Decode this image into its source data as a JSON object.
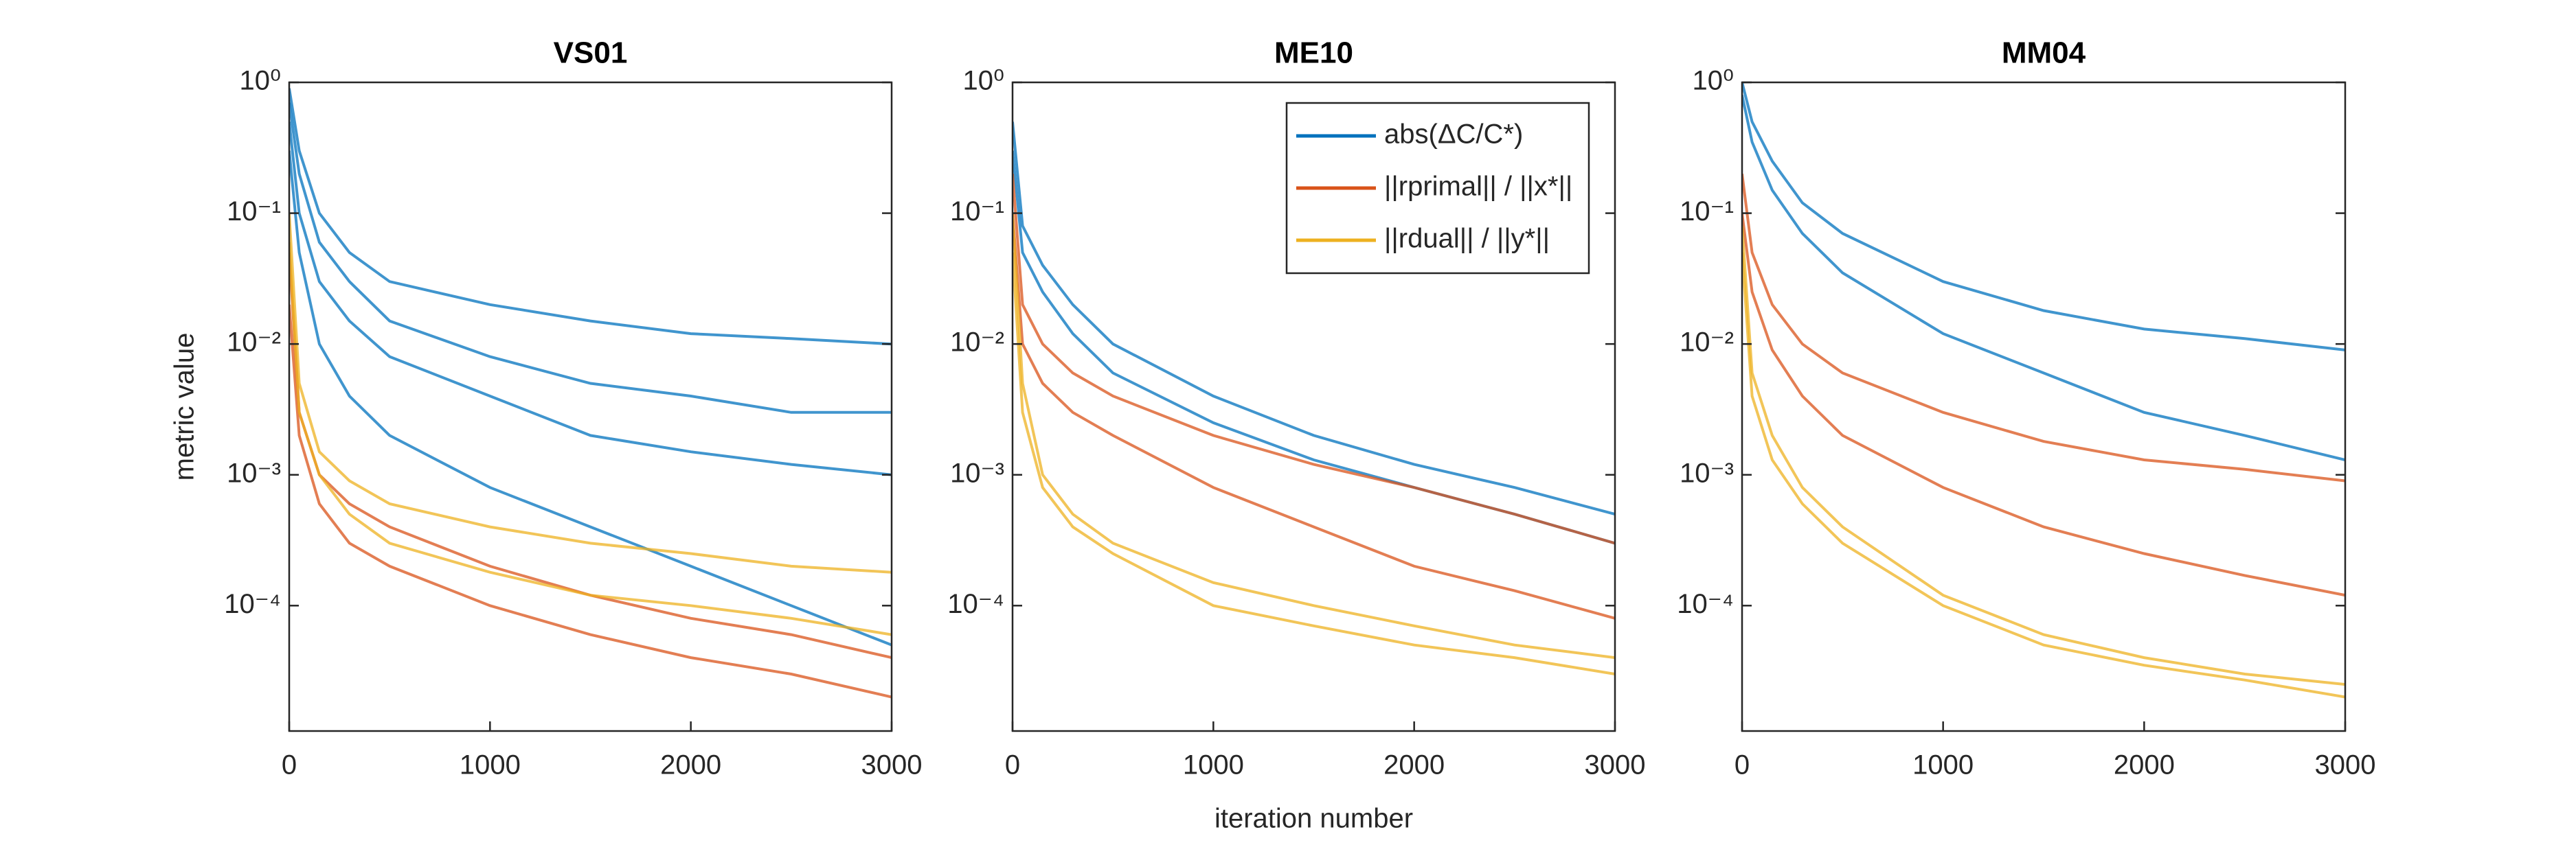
{
  "chart_data": [
    {
      "type": "line",
      "title": "VS01",
      "ylabel": "metric value",
      "yscale": "log",
      "x": [
        0,
        50,
        150,
        300,
        500,
        1000,
        1500,
        2000,
        2500,
        3000
      ],
      "xlim": [
        0,
        3000
      ],
      "xticks": [
        0,
        1000,
        2000,
        3000
      ],
      "ylim": [
        1.1e-05,
        1
      ],
      "yticks": [
        {
          "value": 0.0001,
          "label": "10⁻⁴"
        },
        {
          "value": 0.001,
          "label": "10⁻³"
        },
        {
          "value": 0.01,
          "label": "10⁻²"
        },
        {
          "value": 0.1,
          "label": "10⁻¹"
        },
        {
          "value": 1,
          "label": "10⁰"
        }
      ],
      "series": [
        {
          "color": "#0072bd",
          "values": [
            0.9,
            0.3,
            0.1,
            0.05,
            0.03,
            0.02,
            0.015,
            0.012,
            0.011,
            0.01
          ]
        },
        {
          "color": "#0072bd",
          "values": [
            0.5,
            0.1,
            0.03,
            0.015,
            0.008,
            0.004,
            0.002,
            0.0015,
            0.0012,
            0.001
          ]
        },
        {
          "color": "#0072bd",
          "values": [
            0.3,
            0.05,
            0.01,
            0.004,
            0.002,
            0.0008,
            0.0004,
            0.0002,
            0.0001,
            5e-05
          ]
        },
        {
          "color": "#0072bd",
          "values": [
            0.7,
            0.2,
            0.06,
            0.03,
            0.015,
            0.008,
            0.005,
            0.004,
            0.003,
            0.003
          ]
        },
        {
          "color": "#d95319",
          "values": [
            0.05,
            0.003,
            0.001,
            0.0006,
            0.0004,
            0.0002,
            0.00012,
            8e-05,
            6e-05,
            4e-05
          ]
        },
        {
          "color": "#d95319",
          "values": [
            0.02,
            0.002,
            0.0006,
            0.0003,
            0.0002,
            0.0001,
            6e-05,
            4e-05,
            3e-05,
            2e-05
          ]
        },
        {
          "color": "#edb120",
          "values": [
            0.1,
            0.005,
            0.0015,
            0.0009,
            0.0006,
            0.0004,
            0.0003,
            0.00025,
            0.0002,
            0.00018
          ]
        },
        {
          "color": "#edb120",
          "values": [
            0.06,
            0.003,
            0.001,
            0.0005,
            0.0003,
            0.00018,
            0.00012,
            0.0001,
            8e-05,
            6e-05
          ]
        }
      ]
    },
    {
      "type": "line",
      "title": "ME10",
      "xlabel": "iteration number",
      "yscale": "log",
      "legend": "upper right",
      "x": [
        0,
        50,
        150,
        300,
        500,
        1000,
        1500,
        2000,
        2500,
        3000
      ],
      "xlim": [
        0,
        3000
      ],
      "xticks": [
        0,
        1000,
        2000,
        3000
      ],
      "ylim": [
        1.1e-05,
        1
      ],
      "yticks": [
        {
          "value": 0.0001,
          "label": "10⁻⁴"
        },
        {
          "value": 0.001,
          "label": "10⁻³"
        },
        {
          "value": 0.01,
          "label": "10⁻²"
        },
        {
          "value": 0.1,
          "label": "10⁻¹"
        },
        {
          "value": 1,
          "label": "10⁰"
        }
      ],
      "series": [
        {
          "name": "abs(ΔC/C*)",
          "color": "#0072bd",
          "values": [
            0.5,
            0.08,
            0.04,
            0.02,
            0.01,
            0.004,
            0.002,
            0.0012,
            0.0008,
            0.0005
          ]
        },
        {
          "color": "#0072bd",
          "values": [
            0.3,
            0.05,
            0.025,
            0.012,
            0.006,
            0.0025,
            0.0013,
            0.0008,
            0.0005,
            0.0003
          ]
        },
        {
          "name": "||rprimal|| / ||x*||",
          "color": "#d95319",
          "values": [
            0.2,
            0.02,
            0.01,
            0.006,
            0.004,
            0.002,
            0.0012,
            0.0008,
            0.0005,
            0.0003
          ]
        },
        {
          "color": "#d95319",
          "values": [
            0.1,
            0.01,
            0.005,
            0.003,
            0.002,
            0.0008,
            0.0004,
            0.0002,
            0.00013,
            8e-05
          ]
        },
        {
          "name": "||rdual|| / ||y*||",
          "color": "#edb120",
          "values": [
            0.1,
            0.005,
            0.001,
            0.0005,
            0.0003,
            0.00015,
            0.0001,
            7e-05,
            5e-05,
            4e-05
          ]
        },
        {
          "color": "#edb120",
          "values": [
            0.05,
            0.003,
            0.0008,
            0.0004,
            0.00025,
            0.0001,
            7e-05,
            5e-05,
            4e-05,
            3e-05
          ]
        }
      ]
    },
    {
      "type": "line",
      "title": "MM04",
      "yscale": "log",
      "x": [
        0,
        50,
        150,
        300,
        500,
        1000,
        1500,
        2000,
        2500,
        3000
      ],
      "xlim": [
        0,
        3000
      ],
      "xticks": [
        0,
        1000,
        2000,
        3000
      ],
      "ylim": [
        1.1e-05,
        1
      ],
      "yticks": [
        {
          "value": 0.0001,
          "label": "10⁻⁴"
        },
        {
          "value": 0.001,
          "label": "10⁻³"
        },
        {
          "value": 0.01,
          "label": "10⁻²"
        },
        {
          "value": 0.1,
          "label": "10⁻¹"
        },
        {
          "value": 1,
          "label": "10⁰"
        }
      ],
      "series": [
        {
          "color": "#0072bd",
          "values": [
            1,
            0.5,
            0.25,
            0.12,
            0.07,
            0.03,
            0.018,
            0.013,
            0.011,
            0.009
          ]
        },
        {
          "color": "#0072bd",
          "values": [
            0.8,
            0.35,
            0.15,
            0.07,
            0.035,
            0.012,
            0.006,
            0.003,
            0.002,
            0.0013
          ]
        },
        {
          "color": "#d95319",
          "values": [
            0.2,
            0.05,
            0.02,
            0.01,
            0.006,
            0.003,
            0.0018,
            0.0013,
            0.0011,
            0.0009
          ]
        },
        {
          "color": "#d95319",
          "values": [
            0.1,
            0.025,
            0.009,
            0.004,
            0.002,
            0.0008,
            0.0004,
            0.00025,
            0.00017,
            0.00012
          ]
        },
        {
          "color": "#edb120",
          "values": [
            0.08,
            0.006,
            0.002,
            0.0008,
            0.0004,
            0.00012,
            6e-05,
            4e-05,
            3e-05,
            2.5e-05
          ]
        },
        {
          "color": "#edb120",
          "values": [
            0.05,
            0.004,
            0.0013,
            0.0006,
            0.0003,
            0.0001,
            5e-05,
            3.5e-05,
            2.7e-05,
            2e-05
          ]
        }
      ]
    }
  ]
}
